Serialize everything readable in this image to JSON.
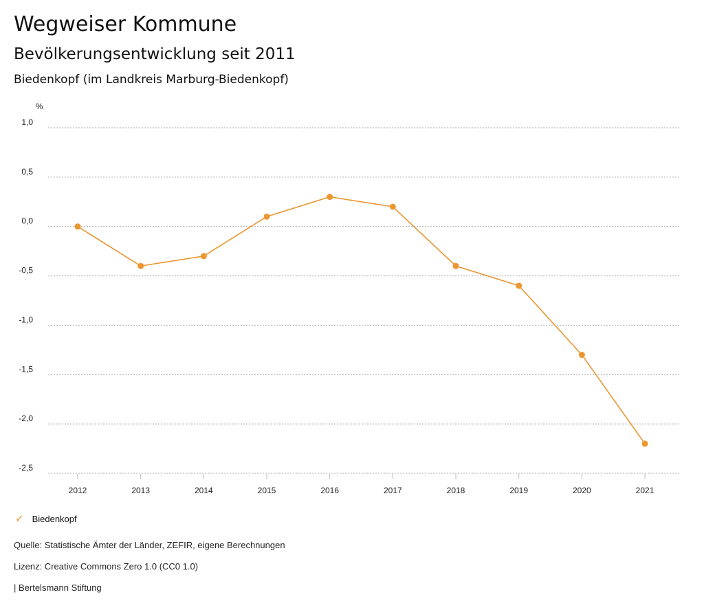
{
  "header": {
    "title": "Wegweiser Kommune",
    "subtitle": "Bevölkerungsentwicklung seit 2011",
    "region": "Biedenkopf (im Landkreis Marburg-Biedenkopf)"
  },
  "chart_data": {
    "type": "line",
    "title": "Bevölkerungsentwicklung seit 2011",
    "ylabel": "%",
    "xlabel": "",
    "ylim": [
      -2.5,
      1.0
    ],
    "yticks": [
      1.0,
      0.5,
      0.0,
      -0.5,
      -1.0,
      -1.5,
      -2.0,
      -2.5
    ],
    "ytick_labels": [
      "1,0",
      "0,5",
      "0,0",
      "-0,5",
      "-1,0",
      "-1,5",
      "-2,0",
      "-2,5"
    ],
    "categories": [
      "2012",
      "2013",
      "2014",
      "2015",
      "2016",
      "2017",
      "2018",
      "2019",
      "2020",
      "2021"
    ],
    "grid": true,
    "legend_position": "bottom-left",
    "series": [
      {
        "name": "Biedenkopf",
        "color": "#ec9632",
        "values": [
          0.0,
          -0.4,
          -0.3,
          0.1,
          0.3,
          0.2,
          -0.4,
          -0.6,
          -1.3,
          -2.2
        ]
      }
    ]
  },
  "footer": {
    "source": "Quelle: Statistische Ämter der Länder, ZEFIR, eigene Berechnungen",
    "license": "Lizenz: Creative Commons Zero 1.0 (CC0 1.0)",
    "publisher": "| Bertelsmann Stiftung"
  }
}
